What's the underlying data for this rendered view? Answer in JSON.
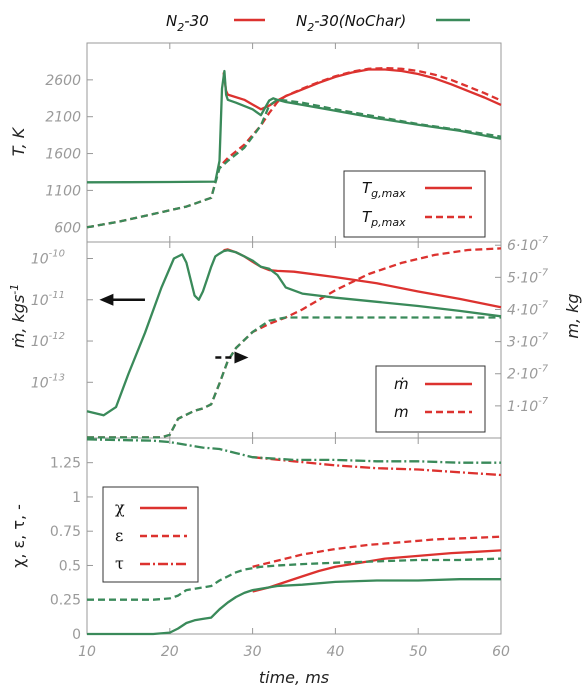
{
  "legend_top": {
    "item1": "N",
    "item1_sub": "2",
    "item1_rest": "-30",
    "item2": "N",
    "item2_sub": "2",
    "item2_rest": "-30(NoChar)"
  },
  "colors": {
    "red": "#dc322f",
    "green": "#3a8a5a",
    "axis": "#999999"
  },
  "chart_data": [
    {
      "type": "line",
      "ylabel": "T, K",
      "xlim": [
        10,
        60
      ],
      "ylim": [
        400,
        3100
      ],
      "yticks": [
        "600",
        "1100",
        "1600",
        "2100",
        "2600"
      ],
      "legend": [
        {
          "text": "T",
          "sub": "g,max",
          "style": "solid"
        },
        {
          "text": "T",
          "sub": "p,max",
          "style": "dashed"
        }
      ],
      "series": [
        {
          "name": "N2-30 Tg,max",
          "color": "red",
          "style": "solid",
          "x": [
            26.5,
            26.8,
            27.0,
            29,
            31,
            32,
            33,
            34,
            36,
            38,
            40,
            42,
            44,
            46,
            48,
            50,
            52,
            54,
            56,
            58,
            60
          ],
          "y": [
            2700,
            2450,
            2400,
            2330,
            2200,
            2250,
            2320,
            2380,
            2470,
            2560,
            2640,
            2700,
            2740,
            2740,
            2720,
            2680,
            2620,
            2540,
            2450,
            2360,
            2260
          ]
        },
        {
          "name": "N2-30 Tp,max",
          "color": "red",
          "style": "dashed",
          "x": [
            10,
            14,
            18,
            22,
            25,
            26,
            27,
            29,
            31,
            32,
            33,
            34,
            36,
            38,
            40,
            42,
            44,
            46,
            48,
            50,
            52,
            54,
            56,
            58,
            60
          ],
          "y": [
            600,
            680,
            780,
            880,
            1000,
            1420,
            1540,
            1720,
            1980,
            2150,
            2300,
            2380,
            2480,
            2570,
            2650,
            2710,
            2750,
            2760,
            2750,
            2720,
            2670,
            2600,
            2510,
            2420,
            2320
          ]
        },
        {
          "name": "N2-30(NoChar) Tg,max",
          "color": "green",
          "style": "solid",
          "x": [
            10,
            15,
            20,
            25.5,
            26.0,
            26.3,
            26.6,
            26.8,
            27.0,
            28,
            30,
            31,
            32,
            32.5,
            33,
            34,
            36,
            40,
            45,
            50,
            55,
            60
          ],
          "y": [
            1210,
            1212,
            1214,
            1220,
            1500,
            2480,
            2720,
            2400,
            2330,
            2290,
            2200,
            2120,
            2320,
            2350,
            2330,
            2300,
            2260,
            2180,
            2080,
            1990,
            1910,
            1800
          ]
        },
        {
          "name": "N2-30(NoChar) Tp,max",
          "color": "green",
          "style": "dashed",
          "x": [
            10,
            14,
            18,
            22,
            25,
            26,
            27,
            29,
            31,
            32,
            33,
            34,
            36,
            40,
            45,
            50,
            55,
            60
          ],
          "y": [
            600,
            680,
            780,
            880,
            1000,
            1400,
            1500,
            1680,
            1980,
            2250,
            2330,
            2320,
            2290,
            2200,
            2100,
            2000,
            1920,
            1830
          ]
        }
      ]
    },
    {
      "type": "line",
      "ylabel": "ṁ, kgs",
      "ylabel_sup": "-1",
      "ylabel_right": "m, kg",
      "xlim": [
        10,
        60
      ],
      "ylim_log": [
        -14.35,
        -9.6
      ],
      "yticks_left": [
        {
          "base": "10",
          "exp": "-13",
          "v": -13
        },
        {
          "base": "10",
          "exp": "-12",
          "v": -12
        },
        {
          "base": "10",
          "exp": "-11",
          "v": -11
        },
        {
          "base": "10",
          "exp": "-10",
          "v": -10
        }
      ],
      "ylim_right": [
        0,
        6.1e-07
      ],
      "yticks_right": [
        {
          "m": "1",
          "exp": "-7",
          "v": 1e-07
        },
        {
          "m": "2",
          "exp": "-7",
          "v": 2e-07
        },
        {
          "m": "3",
          "exp": "-7",
          "v": 3e-07
        },
        {
          "m": "4",
          "exp": "-7",
          "v": 4e-07
        },
        {
          "m": "5",
          "exp": "-7",
          "v": 5e-07
        },
        {
          "m": "6",
          "exp": "-7",
          "v": 6e-07
        }
      ],
      "arrows": [
        {
          "direction": "left",
          "x": [
            17,
            11.5
          ],
          "y": -11.0
        },
        {
          "direction": "right",
          "x": [
            25.5,
            29.5
          ],
          "y": -12.4
        }
      ],
      "legend": [
        {
          "text": "ṁ",
          "style": "solid"
        },
        {
          "text": "m",
          "style": "dashed"
        }
      ],
      "series": [
        {
          "name": "N2-30 ṁ",
          "color": "red",
          "style": "solid",
          "axis": "left",
          "x": [
            26.5,
            27,
            28,
            29,
            30,
            31,
            32,
            33,
            35,
            40,
            45,
            50,
            55,
            60
          ],
          "y": [
            -9.8,
            -9.78,
            -9.85,
            -9.95,
            -10.08,
            -10.2,
            -10.28,
            -10.3,
            -10.32,
            -10.45,
            -10.6,
            -10.8,
            -10.98,
            -11.18
          ]
        },
        {
          "name": "N2-30 m",
          "color": "red",
          "style": "dashed",
          "axis": "right",
          "x": [
            10,
            19,
            20,
            21,
            23,
            24,
            25,
            26,
            27,
            28,
            30,
            32,
            34,
            36,
            38,
            40,
            44,
            48,
            52,
            56,
            60
          ],
          "y": [
            2e-09,
            2e-09,
            1e-08,
            6e-08,
            8.5e-08,
            9.2e-08,
            1.05e-07,
            1.7e-07,
            2.4e-07,
            2.8e-07,
            3.3e-07,
            3.55e-07,
            3.75e-07,
            4e-07,
            4.3e-07,
            4.6e-07,
            5.1e-07,
            5.45e-07,
            5.7e-07,
            5.85e-07,
            5.9e-07
          ]
        },
        {
          "name": "N2-30(NoChar) ṁ",
          "color": "green",
          "style": "solid",
          "axis": "left",
          "x": [
            10,
            12,
            13.5,
            15,
            17,
            19,
            20.5,
            21.5,
            22,
            22.5,
            23,
            23.5,
            24,
            24.5,
            25,
            25.5,
            26,
            26.5,
            27,
            28,
            29,
            30,
            31,
            32,
            33,
            34,
            36,
            40,
            45,
            50,
            55,
            60
          ],
          "y": [
            -13.7,
            -13.8,
            -13.6,
            -12.8,
            -11.8,
            -10.7,
            -10.0,
            -9.9,
            -10.1,
            -10.5,
            -10.9,
            -11.0,
            -10.8,
            -10.5,
            -10.2,
            -9.95,
            -9.88,
            -9.82,
            -9.8,
            -9.85,
            -9.95,
            -10.05,
            -10.2,
            -10.25,
            -10.4,
            -10.7,
            -10.85,
            -10.95,
            -11.05,
            -11.15,
            -11.27,
            -11.4
          ]
        },
        {
          "name": "N2-30(NoChar) m",
          "color": "green",
          "style": "dashed",
          "axis": "right",
          "x": [
            10,
            19,
            20,
            21,
            23,
            24,
            25,
            26,
            27,
            28,
            30,
            32,
            34,
            36,
            40,
            50,
            60
          ],
          "y": [
            2e-09,
            2e-09,
            1e-08,
            6e-08,
            8.5e-08,
            9.2e-08,
            1.05e-07,
            1.7e-07,
            2.4e-07,
            2.8e-07,
            3.3e-07,
            3.65e-07,
            3.75e-07,
            3.75e-07,
            3.75e-07,
            3.75e-07,
            3.75e-07
          ]
        }
      ]
    },
    {
      "type": "line",
      "ylabel": "χ, ε, τ, -",
      "xlabel": "time, ms",
      "xlim": [
        10,
        60
      ],
      "ylim": [
        0,
        1.43
      ],
      "xticks": [
        "10",
        "20",
        "30",
        "40",
        "50",
        "60"
      ],
      "yticks": [
        "0",
        "0.25",
        "0.5",
        "0.75",
        "1",
        "1.25"
      ],
      "legend": [
        {
          "text": "χ",
          "style": "solid"
        },
        {
          "text": "ε",
          "style": "dashed"
        },
        {
          "text": "τ",
          "style": "dashdot"
        }
      ],
      "series": [
        {
          "name": "N2-30 χ",
          "color": "red",
          "style": "solid",
          "x": [
            30,
            32,
            34,
            36,
            38,
            40,
            43,
            46,
            50,
            54,
            57,
            60
          ],
          "y": [
            0.31,
            0.34,
            0.38,
            0.42,
            0.46,
            0.49,
            0.52,
            0.55,
            0.57,
            0.59,
            0.6,
            0.61
          ]
        },
        {
          "name": "N2-30 ε",
          "color": "red",
          "style": "dashed",
          "x": [
            30,
            32,
            34,
            36,
            40,
            44,
            48,
            52,
            56,
            60
          ],
          "y": [
            0.49,
            0.52,
            0.55,
            0.58,
            0.62,
            0.65,
            0.67,
            0.69,
            0.7,
            0.71
          ]
        },
        {
          "name": "N2-30 τ",
          "color": "red",
          "style": "dashdot",
          "x": [
            30,
            35,
            40,
            45,
            50,
            55,
            60
          ],
          "y": [
            1.29,
            1.26,
            1.23,
            1.21,
            1.2,
            1.18,
            1.16
          ]
        },
        {
          "name": "N2-30(NoChar) χ",
          "color": "green",
          "style": "solid",
          "x": [
            10,
            18,
            20,
            21,
            22,
            23,
            24,
            25,
            26,
            27,
            28,
            29,
            30,
            31,
            33,
            36,
            40,
            45,
            50,
            55,
            60
          ],
          "y": [
            0,
            0,
            0.01,
            0.04,
            0.08,
            0.1,
            0.11,
            0.12,
            0.18,
            0.23,
            0.27,
            0.3,
            0.32,
            0.33,
            0.35,
            0.36,
            0.38,
            0.39,
            0.39,
            0.4,
            0.4
          ]
        },
        {
          "name": "N2-30(NoChar) ε",
          "color": "green",
          "style": "dashed",
          "x": [
            10,
            18,
            20,
            21,
            22,
            23,
            24,
            25,
            26,
            27,
            28,
            29,
            30,
            31,
            33,
            36,
            40,
            45,
            50,
            55,
            60
          ],
          "y": [
            0.25,
            0.25,
            0.26,
            0.28,
            0.32,
            0.33,
            0.34,
            0.35,
            0.39,
            0.42,
            0.45,
            0.47,
            0.48,
            0.49,
            0.5,
            0.51,
            0.52,
            0.53,
            0.54,
            0.54,
            0.55
          ]
        },
        {
          "name": "N2-30(NoChar) τ",
          "color": "green",
          "style": "dashdot",
          "x": [
            10,
            18,
            20,
            22,
            24,
            26,
            28,
            30,
            35,
            40,
            45,
            50,
            55,
            60
          ],
          "y": [
            1.42,
            1.41,
            1.4,
            1.38,
            1.36,
            1.35,
            1.32,
            1.29,
            1.27,
            1.27,
            1.26,
            1.26,
            1.25,
            1.25
          ]
        }
      ]
    }
  ]
}
